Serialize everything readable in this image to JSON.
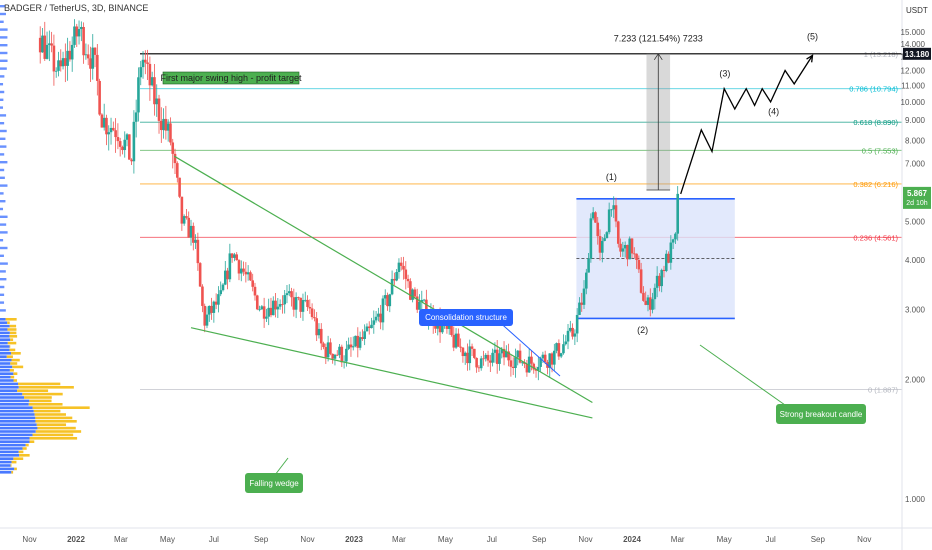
{
  "header": {
    "symbol": "BADGER / TetherUS, 3D, BINANCE",
    "currency": "USDT"
  },
  "chart_data": {
    "type": "candlestick",
    "title": "BADGER / TetherUS, 3D, BINANCE",
    "y_scale": "log",
    "ylim": [
      0.85,
      17
    ],
    "y_ticks": [
      "1.000",
      "2.000",
      "3.000",
      "4.000",
      "5.000",
      "6.000",
      "7.000",
      "8.000",
      "9.000",
      "10.000",
      "11.000",
      "12.000",
      "13.000",
      "14.000",
      "15.000"
    ],
    "x_ticks": [
      "Nov",
      "2022",
      "Mar",
      "May",
      "Jul",
      "Sep",
      "Nov",
      "2023",
      "Mar",
      "May",
      "Jul",
      "Sep",
      "Nov",
      "2024",
      "Mar",
      "May",
      "Jul",
      "Sep",
      "Nov"
    ],
    "price_path": [
      [
        "2021-11-15",
        14.5
      ],
      [
        "2021-12-10",
        11.8
      ],
      [
        "2022-01-05",
        15.2
      ],
      [
        "2022-01-25",
        12.5
      ],
      [
        "2022-02-05",
        9.0
      ],
      [
        "2022-02-25",
        8.5
      ],
      [
        "2022-03-15",
        7.2
      ],
      [
        "2022-03-28",
        13.18
      ],
      [
        "2022-04-15",
        10.0
      ],
      [
        "2022-05-05",
        8.0
      ],
      [
        "2022-05-20",
        5.0
      ],
      [
        "2022-06-05",
        4.6
      ],
      [
        "2022-06-18",
        2.8
      ],
      [
        "2022-07-10",
        3.2
      ],
      [
        "2022-07-25",
        4.2
      ],
      [
        "2022-08-10",
        3.7
      ],
      [
        "2022-09-01",
        3.0
      ],
      [
        "2022-10-01",
        3.2
      ],
      [
        "2022-11-05",
        3.0
      ],
      [
        "2022-11-20",
        2.4
      ],
      [
        "2022-12-20",
        2.3
      ],
      [
        "2023-01-20",
        2.6
      ],
      [
        "2023-02-15",
        3.2
      ],
      [
        "2023-03-01",
        4.0
      ],
      [
        "2023-03-20",
        3.2
      ],
      [
        "2023-04-20",
        2.8
      ],
      [
        "2023-05-20",
        2.4
      ],
      [
        "2023-06-20",
        2.2
      ],
      [
        "2023-07-20",
        2.3
      ],
      [
        "2023-08-20",
        2.2
      ],
      [
        "2023-09-20",
        2.3
      ],
      [
        "2023-10-15",
        2.6
      ],
      [
        "2023-11-01",
        3.4
      ],
      [
        "2023-11-10",
        5.7
      ],
      [
        "2023-11-20",
        4.0
      ],
      [
        "2023-12-05",
        5.7
      ],
      [
        "2023-12-15",
        4.2
      ],
      [
        "2024-01-01",
        4.3
      ],
      [
        "2024-01-20",
        3.0
      ],
      [
        "2024-02-10",
        3.8
      ],
      [
        "2024-02-28",
        4.5
      ],
      [
        "2024-03-03",
        5.867
      ]
    ],
    "last_price": "5.867",
    "countdown": "2d 10h",
    "target_price": "13.180",
    "fib_levels": [
      {
        "label": "0 (1.887)",
        "value": 1.887,
        "color": "#b2b5be"
      },
      {
        "label": "0.236 (4.561)",
        "value": 4.561,
        "color": "#f23645"
      },
      {
        "label": "0.382 (6.216)",
        "value": 6.216,
        "color": "#ff9800"
      },
      {
        "label": "0.5 (7.553)",
        "value": 7.553,
        "color": "#4caf50"
      },
      {
        "label": "0.618 (8.890)",
        "value": 8.89,
        "color": "#089981"
      },
      {
        "label": "0.786 (10.794)",
        "value": 10.794,
        "color": "#00bcd4"
      },
      {
        "label": "1 (13.218)",
        "value": 13.218,
        "color": "#b2b5be"
      }
    ],
    "projection_path": [
      [
        "2024-03-05",
        5.867
      ],
      [
        "2024-04-01",
        8.5
      ],
      [
        "2024-04-15",
        7.5
      ],
      [
        "2024-05-01",
        10.8
      ],
      [
        "2024-05-15",
        9.6
      ],
      [
        "2024-05-30",
        10.8
      ],
      [
        "2024-06-10",
        9.8
      ],
      [
        "2024-06-20",
        10.8
      ],
      [
        "2024-07-01",
        10.0
      ],
      [
        "2024-07-20",
        12.0
      ],
      [
        "2024-08-01",
        11.1
      ],
      [
        "2024-08-25",
        13.1
      ]
    ],
    "measure_label": "7.233 (121.54%) 7233",
    "wave_labels": [
      "(1)",
      "(2)",
      "(3)",
      "(4)",
      "(5)"
    ],
    "annotations": {
      "swing_high": "First major swing high - profit target",
      "consolidation": "Consolidation structure",
      "falling_wedge": "Falling wedge",
      "breakout": "Strong breakout candle"
    },
    "colors": {
      "up": "#26a69a",
      "down": "#ef5350",
      "wedge": "#4caf50",
      "box_fill": "#dbe4fb",
      "box_line": "#2962ff",
      "callout_blue": "#2962ff",
      "callout_green": "#4caf50",
      "price_tag": "#4caf50",
      "target_tag": "#131722",
      "volume_profile_blue": "#2962ff",
      "volume_profile_yellow": "#f5b700"
    },
    "grid": false
  }
}
